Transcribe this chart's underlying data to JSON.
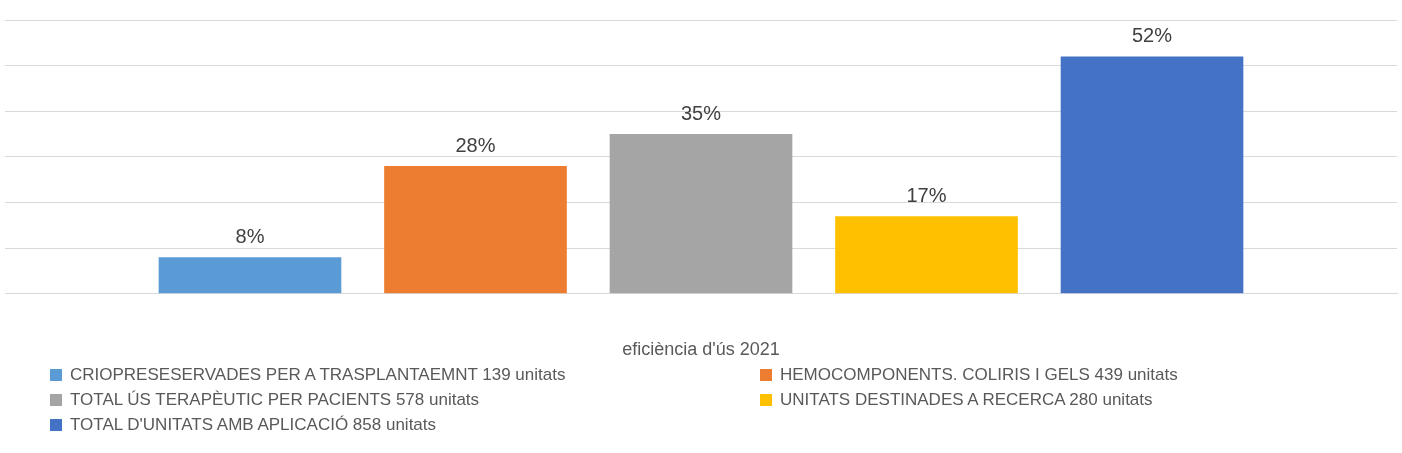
{
  "chart_data": {
    "type": "bar",
    "categories": [
      null
    ],
    "xlabel": "eficiència d'ús 2021",
    "series": [
      {
        "name": "CRIOPRESESERVADES PER A TRASPLANTAEMNT 139 unitats",
        "color": "#5b9bd5",
        "values": [
          8
        ],
        "value_labels": [
          "8%"
        ]
      },
      {
        "name": "HEMOCOMPONENTS. COLIRIS I GELS 439 unitats",
        "color": "#ed7d31",
        "values": [
          28
        ],
        "value_labels": [
          "28%"
        ]
      },
      {
        "name": "TOTAL ÚS TERAPÈUTIC PER PACIENTS 578 unitats",
        "color": "#a5a5a5",
        "values": [
          35
        ],
        "value_labels": [
          "35%"
        ]
      },
      {
        "name": "UNITATS DESTINADES A RECERCA 280 unitats",
        "color": "#ffc000",
        "values": [
          17
        ],
        "value_labels": [
          "17%"
        ]
      },
      {
        "name": "TOTAL D'UNITATS AMB APLICACIÓ 858 unitats",
        "color": "#4472c4",
        "values": [
          52
        ],
        "value_labels": [
          "52%"
        ]
      }
    ],
    "grid": "y",
    "legend": "bottom",
    "tick_labels": "x"
  }
}
